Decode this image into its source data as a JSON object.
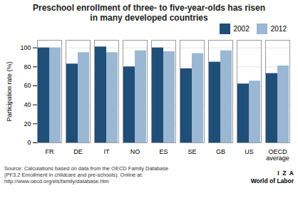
{
  "chart_data": {
    "type": "bar",
    "title": "Preschool enrollment of three- to five-year-olds has risen\nin many developed countries",
    "categories": [
      "FR",
      "DE",
      "IT",
      "NO",
      "ES",
      "SE",
      "GB",
      "US",
      "OECD\naverage"
    ],
    "series": [
      {
        "name": "2002",
        "color": "#1f4e79",
        "values": [
          100,
          83,
          101,
          80,
          100,
          78,
          85,
          62,
          73
        ]
      },
      {
        "name": "2012",
        "color": "#9ab7d3",
        "values": [
          100,
          95,
          95,
          97,
          96,
          94,
          97,
          65,
          81
        ]
      }
    ],
    "ylabel": "Participation rate (%)",
    "ylim": [
      0,
      108
    ],
    "yticks": [
      0,
      20,
      40,
      60,
      80,
      100
    ],
    "grid": true,
    "legend": "upper right",
    "annotations": [
      "Source: Calculations based on data from the OECD Family Database\n(PF3.2 Enrollment in childcare and pre-schools). Online at:\nhttp://www.oecd.org/els/family/database.htm",
      "I  Z  A",
      "World of Labor"
    ]
  }
}
